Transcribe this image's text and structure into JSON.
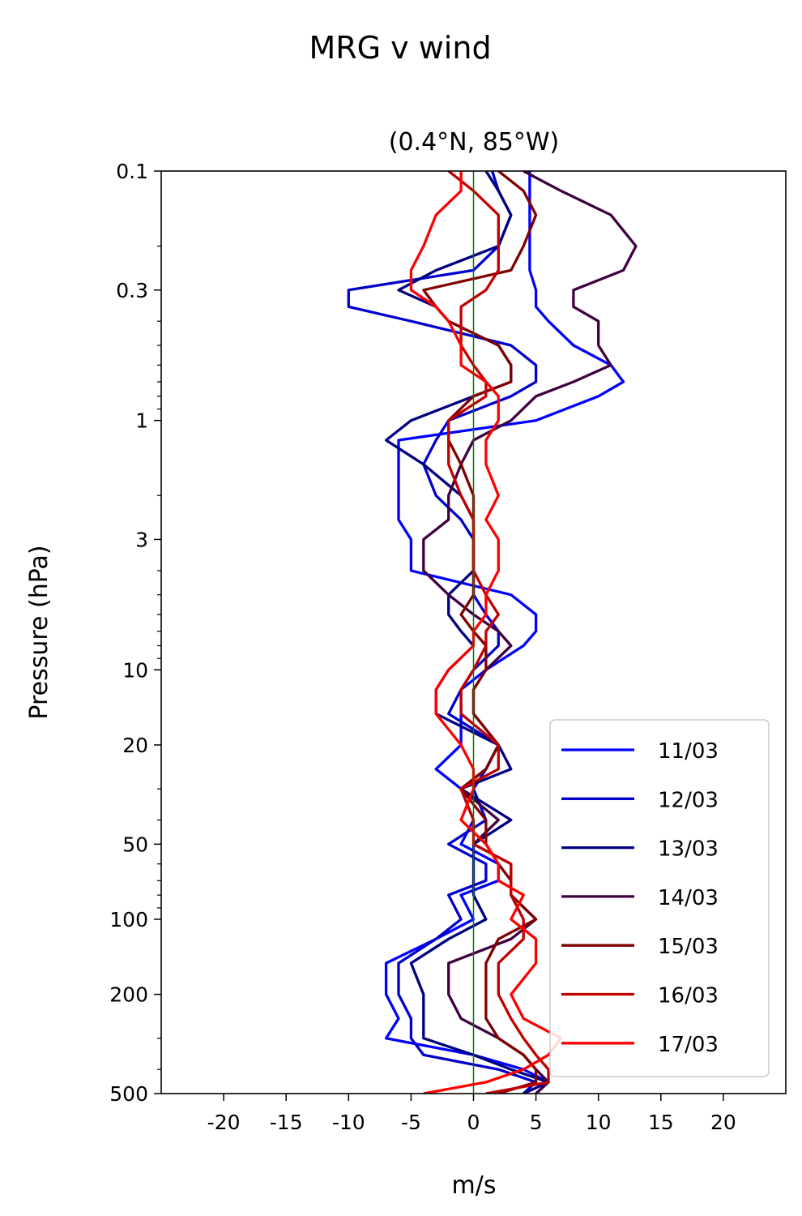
{
  "chart_data": {
    "type": "line",
    "title": "MRG v wind",
    "subtitle": "(0.4°N, 85°W)",
    "xlabel": "m/s",
    "ylabel": "Pressure (hPa)",
    "xlim": [
      -25,
      25
    ],
    "ylim": [
      500,
      0.1
    ],
    "yscale": "log",
    "x_ticks": [
      -20,
      -15,
      -10,
      -5,
      0,
      5,
      10,
      15,
      20
    ],
    "x_tick_labels": [
      "-20",
      "-15",
      "-10",
      "-5",
      "0",
      "5",
      "10",
      "15",
      "20"
    ],
    "y_ticks": [
      0.1,
      0.3,
      1,
      3,
      10,
      20,
      50,
      100,
      200,
      500
    ],
    "y_tick_labels": [
      "0.1",
      "0.3",
      "1",
      "3",
      "10",
      "20",
      "50",
      "100",
      "200",
      "500"
    ],
    "zero_line": {
      "x": 0,
      "color": "#008000"
    },
    "grid": false,
    "legend_position": "lower-right",
    "pressure_levels": [
      0.1,
      0.12,
      0.15,
      0.2,
      0.25,
      0.3,
      0.35,
      0.4,
      0.5,
      0.6,
      0.7,
      0.8,
      1.0,
      1.2,
      1.5,
      2.0,
      2.5,
      3.0,
      4.0,
      5.0,
      6.0,
      7.0,
      8.0,
      10,
      12,
      15,
      20,
      25,
      30,
      40,
      50,
      60,
      70,
      80,
      100,
      120,
      150,
      200,
      250,
      300,
      350,
      400,
      450,
      500
    ],
    "series": [
      {
        "name": "11/03",
        "color": "#0000ff",
        "values": [
          4.5,
          4.5,
          4.5,
          4.5,
          4.5,
          5,
          5,
          6,
          8,
          11,
          12,
          10,
          5,
          -6,
          -6,
          -6,
          -6,
          -5,
          -5,
          3,
          5,
          5,
          4,
          1,
          -1,
          -1,
          -1,
          -3,
          -1,
          0,
          -1,
          2,
          2,
          -1,
          0,
          -3,
          -7,
          -7,
          -6,
          -7,
          0,
          4,
          6,
          5
        ]
      },
      {
        "name": "12/03",
        "color": "#0000cc",
        "values": [
          1.5,
          2,
          3,
          2,
          0,
          -10,
          -10,
          -5,
          3,
          5,
          5,
          3,
          -2,
          -3,
          -4,
          -3,
          -1,
          0,
          0,
          0,
          1,
          2,
          2,
          0,
          -1,
          -2,
          2,
          1,
          0,
          1,
          -2,
          1,
          1,
          -2,
          -1,
          -3,
          -6,
          -6,
          -5,
          -5,
          -4,
          2,
          5,
          4
        ]
      },
      {
        "name": "13/03",
        "color": "#000080",
        "values": [
          1,
          2,
          3,
          2,
          -3,
          -6,
          -3,
          -2,
          2,
          3,
          3,
          0,
          -5,
          -7,
          -4,
          -1,
          0,
          0,
          0,
          -2,
          -2,
          -1,
          0,
          -2,
          -3,
          -3,
          2,
          3,
          -1,
          3,
          0,
          0,
          0,
          0,
          1,
          -2,
          -5,
          -4,
          -4,
          -4,
          0,
          3,
          6,
          4
        ]
      },
      {
        "name": "14/03",
        "color": "#400040",
        "values": [
          4,
          7,
          11,
          13,
          12,
          8,
          8,
          10,
          10,
          11,
          8,
          5,
          3,
          0,
          -1,
          -2,
          -2,
          -4,
          -4,
          -2,
          0,
          2,
          3,
          1,
          0,
          0,
          2,
          1,
          -1,
          2,
          0,
          3,
          3,
          3,
          5,
          3,
          -2,
          -2,
          -1,
          2,
          4,
          5,
          6,
          5
        ]
      },
      {
        "name": "15/03",
        "color": "#800000",
        "values": [
          2,
          4,
          5,
          4,
          3,
          -4,
          -3,
          -2,
          2,
          3,
          3,
          0,
          -2,
          -2,
          -1,
          0,
          0,
          0,
          0,
          0,
          -1,
          0,
          1,
          1,
          0,
          0,
          2,
          1,
          -1,
          1,
          1,
          2,
          3,
          3,
          5,
          2,
          1,
          1,
          1,
          2,
          4,
          5,
          5,
          2
        ]
      },
      {
        "name": "16/03",
        "color": "#c00000",
        "values": [
          -2,
          0,
          2,
          2,
          2,
          1,
          -1,
          -1,
          -1,
          0,
          1,
          1,
          -2,
          -2,
          -2,
          -1,
          0,
          0,
          0,
          1,
          2,
          1,
          1,
          0,
          -1,
          -1,
          2,
          2,
          -1,
          0,
          0,
          3,
          3,
          3,
          4,
          4,
          2,
          2,
          3,
          4,
          5,
          6,
          6,
          1
        ]
      },
      {
        "name": "17/03",
        "color": "#ff0000",
        "values": [
          -1,
          -1,
          -3,
          -4,
          -5,
          -5,
          -3,
          -2,
          -1,
          -1,
          1,
          2,
          2,
          1,
          1,
          2,
          1,
          2,
          2,
          1,
          1,
          0,
          0,
          -2,
          -3,
          -3,
          -1,
          0,
          0,
          -1,
          1,
          2,
          2,
          4,
          3,
          5,
          5,
          3,
          4,
          7,
          6,
          4,
          1,
          -4
        ]
      }
    ]
  }
}
